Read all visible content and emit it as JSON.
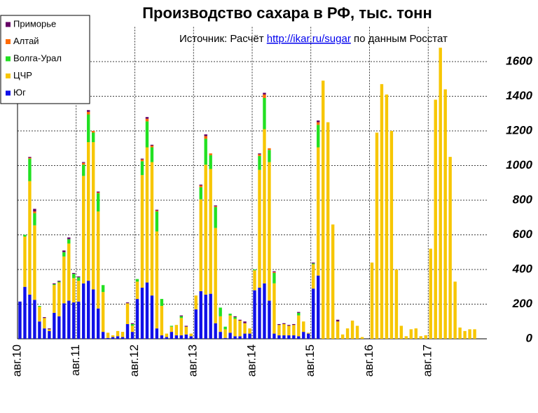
{
  "chart_data": {
    "type": "stacked_bar",
    "title": "Производство сахара в РФ, тыс. тонн",
    "source": {
      "prefix": "Источник: Расчёт",
      "link": "http://ikar.ru/sugar",
      "suffix": "по данным Росстат"
    },
    "categories": [
      "авг.10",
      null,
      null,
      null,
      null,
      null,
      null,
      null,
      null,
      null,
      null,
      null,
      "авг.11",
      null,
      null,
      null,
      null,
      null,
      null,
      null,
      null,
      null,
      null,
      null,
      "авг.12",
      null,
      null,
      null,
      null,
      null,
      null,
      null,
      null,
      null,
      null,
      null,
      "авг.13",
      null,
      null,
      null,
      null,
      null,
      null,
      null,
      null,
      null,
      null,
      null,
      "авг.14",
      null,
      null,
      null,
      null,
      null,
      null,
      null,
      null,
      null,
      null,
      null,
      "авг.15",
      null,
      null,
      null,
      null,
      null,
      null,
      null,
      null,
      null,
      null,
      null,
      "авг.16",
      null,
      null,
      null,
      null,
      null,
      null,
      null,
      null,
      null,
      null,
      null,
      "авг.17",
      null,
      null,
      null,
      null,
      null,
      null,
      null,
      null,
      null,
      null,
      null
    ],
    "series": [
      {
        "name": "Юг",
        "color": "#1010e8",
        "values": [
          215,
          300,
          255,
          225,
          100,
          60,
          45,
          150,
          130,
          205,
          220,
          210,
          215,
          320,
          335,
          285,
          175,
          40,
          5,
          10,
          15,
          10,
          85,
          40,
          230,
          295,
          325,
          250,
          60,
          20,
          10,
          40,
          20,
          20,
          25,
          15,
          170,
          275,
          255,
          260,
          90,
          40,
          5,
          35,
          15,
          15,
          30,
          30,
          280,
          295,
          320,
          220,
          30,
          20,
          20,
          20,
          20,
          15,
          40,
          30,
          290,
          365,
          0,
          0,
          0,
          0,
          0,
          0,
          0,
          0,
          0,
          0,
          0,
          0,
          0,
          0,
          0,
          0,
          0,
          0,
          0,
          0,
          0,
          0,
          0,
          0,
          0,
          0,
          0,
          0,
          0,
          0,
          0,
          0,
          0,
          0
        ]
      },
      {
        "name": "ЦЧР",
        "color": "#f7c600",
        "values": [
          0,
          290,
          655,
          430,
          85,
          60,
          10,
          160,
          195,
          270,
          330,
          140,
          120,
          620,
          800,
          850,
          560,
          230,
          30,
          10,
          30,
          30,
          120,
          35,
          100,
          650,
          780,
          770,
          560,
          170,
          20,
          30,
          60,
          100,
          45,
          15,
          80,
          530,
          750,
          720,
          550,
          90,
          50,
          100,
          100,
          90,
          60,
          30,
          115,
          680,
          890,
          800,
          290,
          60,
          65,
          55,
          60,
          120,
          60,
          5,
          140,
          740,
          1490,
          1250,
          660,
          100,
          25,
          60,
          105,
          75,
          10,
          0,
          440,
          1190,
          1470,
          1410,
          1200,
          400,
          75,
          15,
          55,
          60,
          15,
          20,
          520,
          1380,
          1680,
          1440,
          1050,
          330,
          65,
          45,
          55,
          55,
          0,
          0
        ]
      },
      {
        "name": "Волга-Урал",
        "color": "#22e022",
        "values": [
          0,
          10,
          130,
          70,
          5,
          0,
          0,
          5,
          5,
          25,
          25,
          25,
          20,
          65,
          160,
          55,
          105,
          40,
          0,
          0,
          0,
          0,
          0,
          10,
          15,
          80,
          150,
          85,
          115,
          40,
          0,
          5,
          0,
          10,
          0,
          0,
          0,
          70,
          150,
          80,
          120,
          50,
          15,
          10,
          10,
          0,
          0,
          0,
          5,
          80,
          180,
          70,
          60,
          0,
          0,
          0,
          0,
          15,
          0,
          0,
          5,
          130,
          0,
          0,
          0,
          0,
          0,
          0,
          0,
          0,
          0,
          0,
          0,
          0,
          0,
          0,
          0,
          0,
          0,
          0,
          0,
          0,
          0,
          0,
          0,
          0,
          0,
          0,
          0,
          0,
          0,
          0,
          0,
          0,
          0,
          0
        ]
      },
      {
        "name": "Алтай",
        "color": "#ff6a00",
        "values": [
          0,
          0,
          5,
          10,
          0,
          0,
          0,
          0,
          0,
          0,
          0,
          0,
          0,
          10,
          15,
          10,
          5,
          0,
          0,
          0,
          0,
          0,
          0,
          0,
          0,
          10,
          15,
          10,
          5,
          0,
          0,
          0,
          0,
          0,
          0,
          0,
          0,
          10,
          15,
          10,
          5,
          0,
          0,
          0,
          0,
          0,
          0,
          0,
          0,
          10,
          20,
          10,
          5,
          0,
          0,
          0,
          0,
          0,
          0,
          0,
          0,
          15,
          0,
          0,
          0,
          0,
          0,
          0,
          0,
          0,
          0,
          0,
          0,
          0,
          0,
          0,
          0,
          0,
          0,
          0,
          0,
          0,
          0,
          0,
          0,
          0,
          0,
          0,
          0,
          0,
          0,
          0,
          0,
          0,
          0,
          0
        ]
      },
      {
        "name": "Приморье",
        "color": "#660066",
        "values": [
          0,
          0,
          5,
          15,
          0,
          5,
          5,
          5,
          5,
          10,
          10,
          5,
          5,
          5,
          10,
          0,
          5,
          0,
          0,
          0,
          0,
          0,
          5,
          5,
          0,
          5,
          10,
          5,
          5,
          0,
          0,
          0,
          0,
          5,
          5,
          0,
          0,
          5,
          10,
          0,
          5,
          0,
          0,
          0,
          5,
          5,
          10,
          0,
          0,
          5,
          10,
          0,
          5,
          5,
          5,
          5,
          5,
          5,
          0,
          0,
          5,
          10,
          0,
          0,
          0,
          10,
          0,
          0,
          0,
          0,
          0,
          0,
          0,
          0,
          0,
          0,
          0,
          0,
          0,
          0,
          0,
          0,
          0,
          0,
          0,
          0,
          0,
          0,
          0,
          0,
          0,
          0,
          0,
          0,
          0,
          0
        ]
      }
    ],
    "ylim": [
      0,
      1800
    ],
    "yticks": [
      0,
      200,
      400,
      600,
      800,
      1000,
      1200,
      1400,
      1600
    ],
    "grid": true,
    "legend": "upper left"
  }
}
